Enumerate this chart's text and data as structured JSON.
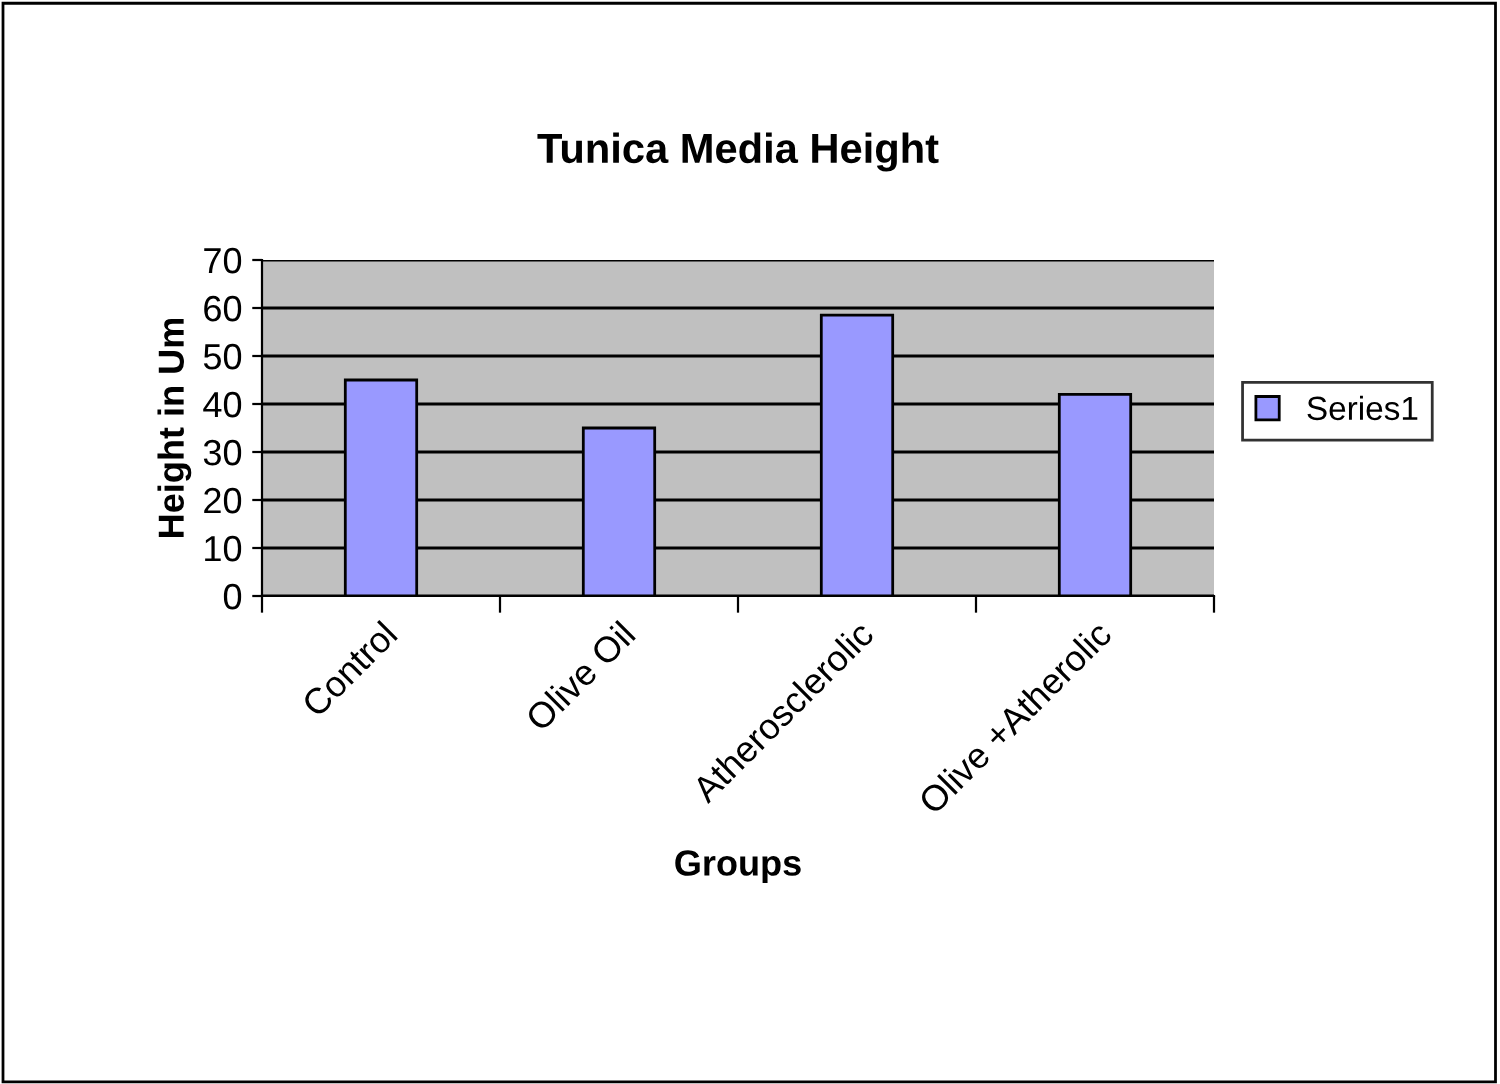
{
  "chart_data": {
    "type": "bar",
    "title": "Tunica Media Height",
    "xlabel": "Groups",
    "ylabel": "Height in Um",
    "categories": [
      "Control",
      "Olive Oil",
      "Atherosclerolic",
      "Olive +Atherolic"
    ],
    "series": [
      {
        "name": "Series1",
        "color": "#9999ff",
        "values": [
          45,
          35,
          58.5,
          42
        ]
      }
    ],
    "ylim": [
      0,
      70
    ],
    "yticks": [
      0,
      10,
      20,
      30,
      40,
      50,
      60,
      70
    ],
    "grid": "y",
    "legend": "right"
  }
}
